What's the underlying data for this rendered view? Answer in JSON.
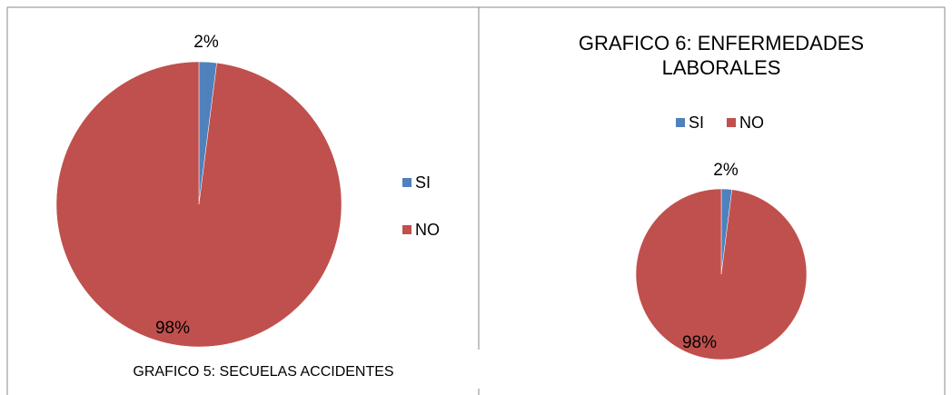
{
  "chart_data": [
    {
      "type": "pie",
      "title": "GRAFICO 5: SECUELAS ACCIDENTES",
      "categories": [
        "SI",
        "NO"
      ],
      "values": [
        2,
        98
      ],
      "value_labels": [
        "2%",
        "98%"
      ],
      "colors": [
        "#4f81bd",
        "#c0504d"
      ],
      "legend": "right"
    },
    {
      "type": "pie",
      "title": "GRAFICO 6: ENFERMEDADES LABORALES",
      "categories": [
        "SI",
        "NO"
      ],
      "values": [
        2,
        98
      ],
      "value_labels": [
        "2%",
        "98%"
      ],
      "colors": [
        "#4f81bd",
        "#c0504d"
      ],
      "legend": "top"
    }
  ]
}
